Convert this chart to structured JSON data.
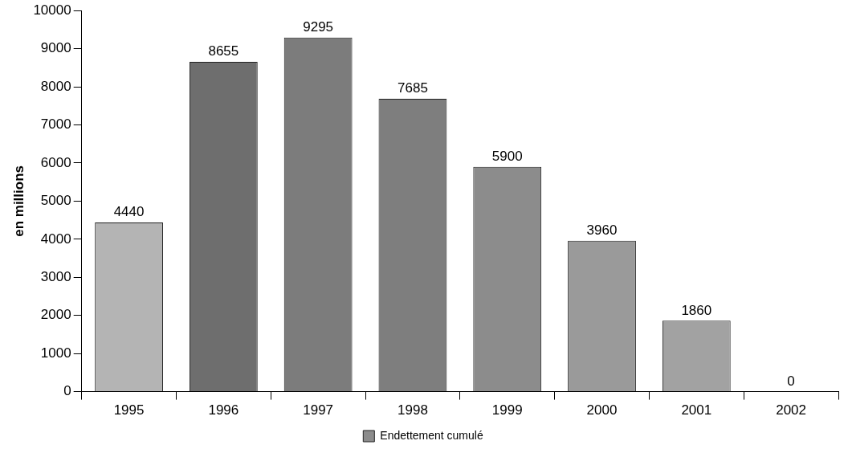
{
  "chart_data": {
    "type": "bar",
    "ylabel": "en millions",
    "categories": [
      "1995",
      "1996",
      "1997",
      "1998",
      "1999",
      "2000",
      "2001",
      "2002"
    ],
    "series": [
      {
        "name": "Endettement cumulé",
        "color": "#8c8c8c",
        "colors": [
          "#b4b4b4",
          "#6e6e6e",
          "#7c7c7c",
          "#7e7e7e",
          "#8c8c8c",
          "#9a9a9a",
          "#a2a2a2",
          "#a2a2a2"
        ],
        "values": [
          4440,
          8655,
          9295,
          7685,
          5900,
          3960,
          1860,
          0
        ]
      }
    ],
    "ylim": [
      0,
      10000
    ],
    "yticks": [
      0,
      1000,
      2000,
      3000,
      4000,
      5000,
      6000,
      7000,
      8000,
      9000,
      10000
    ],
    "grid": false,
    "legend": "bottom",
    "data_labels": true
  }
}
